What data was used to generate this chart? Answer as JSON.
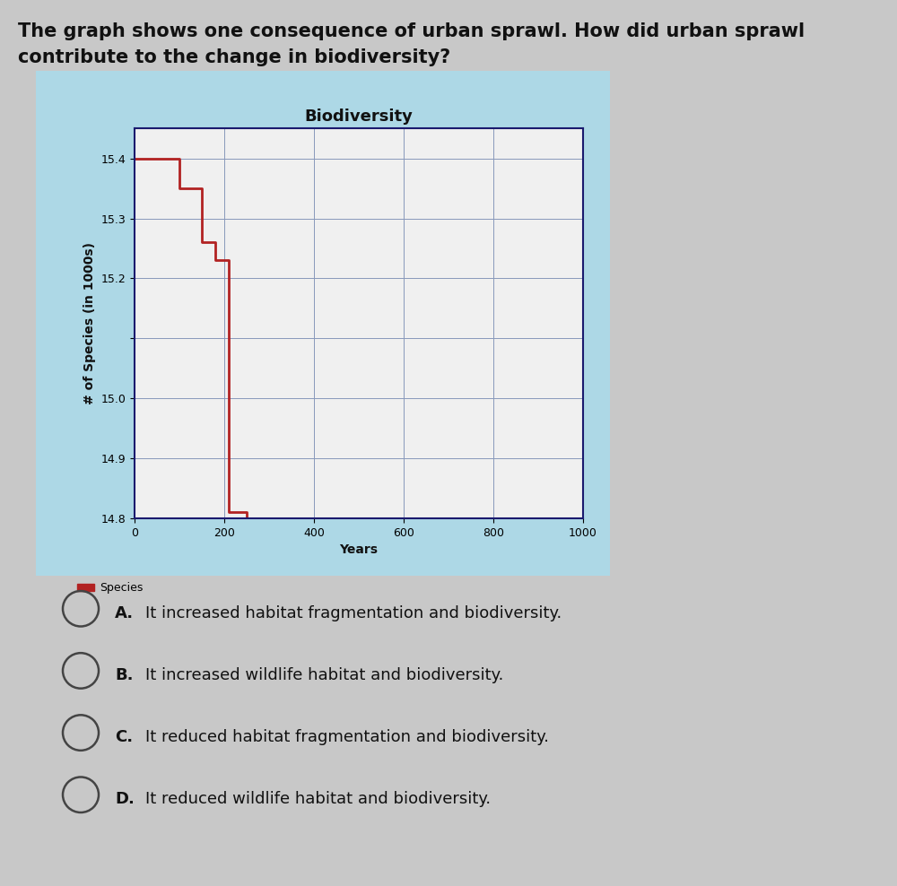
{
  "title": "Biodiversity",
  "xlabel": "Years",
  "ylabel": "# of Species (in 1000s)",
  "chart_bg": "#add8e6",
  "plot_area_bg": "#f0f0f0",
  "page_bg": "#c8c8c8",
  "line_color": "#b22222",
  "line_width": 2.0,
  "legend_label": "Species",
  "xlim": [
    0,
    1000
  ],
  "ylim": [
    14.8,
    15.45
  ],
  "xticks": [
    0,
    200,
    400,
    600,
    800,
    1000
  ],
  "yticks": [
    14.8,
    14.9,
    15.0,
    15.1,
    15.2,
    15.3,
    15.4
  ],
  "ytick_labels": [
    "14.8",
    "14.9",
    "15.0",
    "",
    "15.2",
    "15.3",
    "15.4"
  ],
  "line_x": [
    0,
    100,
    100,
    150,
    150,
    180,
    180,
    210,
    210,
    250,
    250,
    1000
  ],
  "line_y": [
    15.4,
    15.4,
    15.35,
    15.35,
    15.26,
    15.26,
    15.23,
    15.23,
    14.81,
    14.81,
    14.8,
    14.8
  ],
  "question_text1": "The graph shows one consequence of urban sprawl. How did urban sprawl",
  "question_text2": "contribute to the change in biodiversity?",
  "choices": [
    "It increased habitat fragmentation and biodiversity.",
    "It increased wildlife habitat and biodiversity.",
    "It reduced habitat fragmentation and biodiversity.",
    "It reduced wildlife habitat and biodiversity."
  ],
  "choice_labels": [
    "A.",
    "B.",
    "C.",
    "D."
  ],
  "chart_border_color": "#1a1a6e",
  "grid_color": "#8899bb",
  "grid_linewidth": 0.7,
  "title_fontsize": 13,
  "axis_label_fontsize": 10,
  "tick_fontsize": 9,
  "question_fontsize": 15,
  "choice_fontsize": 13
}
